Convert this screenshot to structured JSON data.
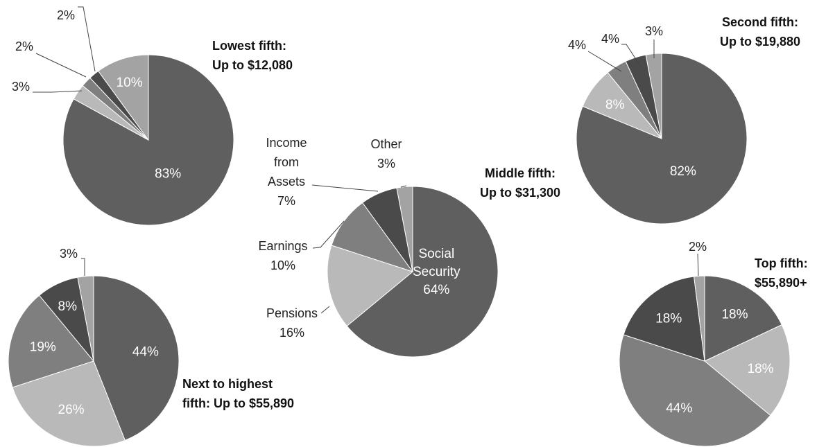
{
  "colors": {
    "social_security": "#5f5f5f",
    "pensions": "#b9b9b9",
    "earnings": "#7f7f7f",
    "assets": "#4a4a4a",
    "other": "#a3a3a3",
    "inner_text": "#ffffff",
    "dark_text": "#111111"
  },
  "chart_data": [
    {
      "type": "pie",
      "title": [
        "Lowest fifth:",
        "Up to $12,080"
      ],
      "categories": [
        "Social Security",
        "Pensions",
        "Earnings",
        "Income from Assets",
        "Other"
      ],
      "values": [
        83,
        3,
        2,
        2,
        10
      ],
      "labels": [
        "83%",
        "3%",
        "2%",
        "2%",
        "10%"
      ]
    },
    {
      "type": "pie",
      "title": [
        "Second fifth:",
        "Up to $19,880"
      ],
      "categories": [
        "Social Security",
        "Pensions",
        "Earnings",
        "Income from Assets",
        "Other"
      ],
      "values": [
        82,
        8,
        4,
        4,
        3
      ],
      "labels": [
        "82%",
        "8%",
        "4%",
        "4%",
        "3%"
      ]
    },
    {
      "type": "pie",
      "title": [
        "Middle fifth:",
        "Up to $31,300"
      ],
      "categories": [
        "Social Security",
        "Pensions",
        "Earnings",
        "Income from Assets",
        "Other"
      ],
      "values": [
        64,
        16,
        10,
        7,
        3
      ],
      "labels": [
        "Social|Security|64%",
        "Pensions|16%",
        "Earnings|10%",
        "Income|from|Assets|7%",
        "Other|3%"
      ]
    },
    {
      "type": "pie",
      "title": [
        "Next to highest",
        "fifth: Up to $55,890"
      ],
      "categories": [
        "Social Security",
        "Pensions",
        "Earnings",
        "Income from Assets",
        "Other"
      ],
      "values": [
        44,
        26,
        19,
        8,
        3
      ],
      "labels": [
        "44%",
        "26%",
        "19%",
        "8%",
        "3%"
      ]
    },
    {
      "type": "pie",
      "title": [
        "Top fifth:",
        "$55,890+"
      ],
      "categories": [
        "Social Security",
        "Pensions",
        "Earnings",
        "Income from Assets",
        "Other"
      ],
      "values": [
        18,
        18,
        44,
        18,
        2
      ],
      "labels": [
        "18%",
        "18%",
        "44%",
        "18%",
        "2%"
      ]
    }
  ]
}
